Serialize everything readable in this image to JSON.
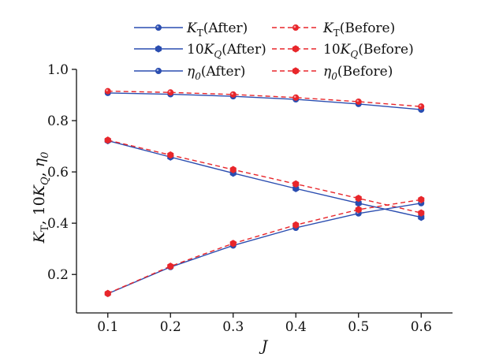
{
  "chart_data": {
    "type": "line",
    "title": "",
    "xlabel": "J",
    "ylabel_parts": [
      {
        "t": "K",
        "italic": true
      },
      {
        "t": "T",
        "sub": true
      },
      {
        "t": ", 10",
        "italic": false
      },
      {
        "t": "K",
        "italic": true
      },
      {
        "t": "Q",
        "sub": true,
        "italic": true
      },
      {
        "t": ", ",
        "italic": false
      },
      {
        "t": "η",
        "italic": true
      },
      {
        "t": "0",
        "sub": true,
        "italic": true
      }
    ],
    "x": [
      0.1,
      0.2,
      0.3,
      0.4,
      0.5,
      0.6
    ],
    "xlim": [
      0.05,
      0.65
    ],
    "ylim": [
      0.05,
      1.0
    ],
    "xticks": [
      "0.1",
      "0.2",
      "0.3",
      "0.4",
      "0.5",
      "0.6"
    ],
    "yticks": [
      "0.2",
      "0.4",
      "0.6",
      "0.8",
      "1.0"
    ],
    "ytick_values": [
      0.2,
      0.4,
      0.6,
      0.8,
      1.0
    ],
    "legend_position": "top",
    "series": [
      {
        "name": "KT (After)",
        "label_sym": "K",
        "label_sub": "T",
        "label_tail": "(After)",
        "color": "#2a4db0",
        "dashed": false,
        "marker": "circle",
        "values": [
          0.908,
          0.903,
          0.895,
          0.883,
          0.865,
          0.843
        ]
      },
      {
        "name": "KT (Before)",
        "label_sym": "K",
        "label_sub": "T",
        "label_tail": "(Before)",
        "color": "#e8262b",
        "dashed": true,
        "marker": "circle",
        "values": [
          0.915,
          0.91,
          0.902,
          0.89,
          0.874,
          0.855
        ]
      },
      {
        "name": "10KQ (After)",
        "label_pre": "10",
        "label_sym": "K",
        "label_sub": "Q",
        "label_tail": "(After)",
        "color": "#2a4db0",
        "dashed": false,
        "marker": "hex",
        "values": [
          0.722,
          0.658,
          0.595,
          0.535,
          0.478,
          0.423
        ]
      },
      {
        "name": "10KQ (Before)",
        "label_pre": "10",
        "label_sym": "K",
        "label_sub": "Q",
        "label_tail": "(Before)",
        "color": "#e8262b",
        "dashed": true,
        "marker": "hex",
        "values": [
          0.724,
          0.666,
          0.609,
          0.553,
          0.497,
          0.44
        ]
      },
      {
        "name": "η0 (After)",
        "label_sym": "η",
        "label_sub": "0",
        "label_tail": "(After)",
        "color": "#2a4db0",
        "dashed": false,
        "marker": "circle",
        "values": [
          0.125,
          0.229,
          0.313,
          0.382,
          0.438,
          0.478
        ]
      },
      {
        "name": "η0 (Before)",
        "label_sym": "η",
        "label_sub": "0",
        "label_tail": "(Before)",
        "color": "#e8262b",
        "dashed": true,
        "marker": "hex",
        "values": [
          0.126,
          0.232,
          0.321,
          0.393,
          0.453,
          0.492
        ]
      }
    ]
  }
}
